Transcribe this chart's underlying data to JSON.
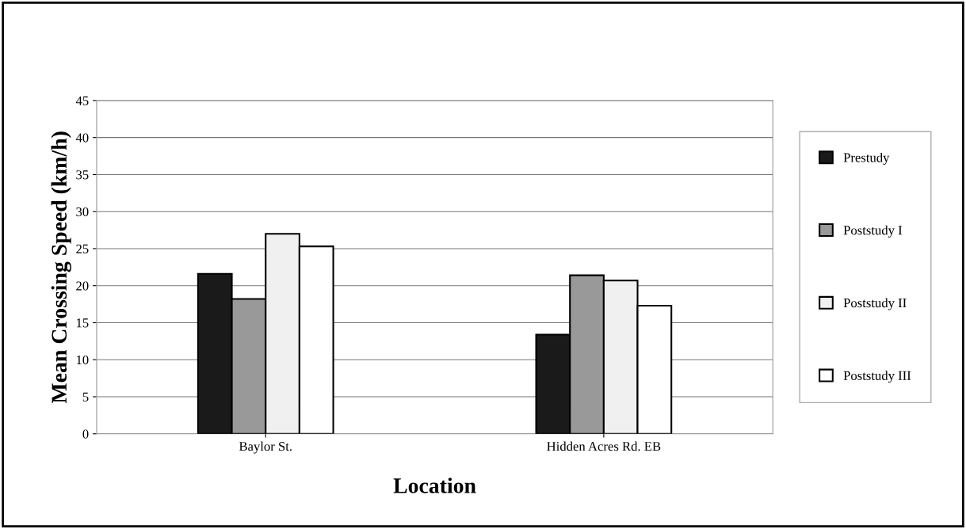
{
  "chart_data": {
    "type": "bar",
    "xlabel": "Location",
    "ylabel": "Mean Crossing Speed (km/h)",
    "categories": [
      "Baylor St.",
      "Hidden Acres Rd. EB"
    ],
    "series": [
      {
        "name": "Prestudy",
        "color": "#1a1a1a",
        "values": [
          21.6,
          13.4
        ]
      },
      {
        "name": "Poststudy I",
        "color": "#999999",
        "values": [
          18.2,
          21.4
        ]
      },
      {
        "name": "Poststudy II",
        "color": "#f0f0f0",
        "values": [
          27.0,
          20.7
        ]
      },
      {
        "name": "Poststudy III",
        "color": "#ffffff",
        "values": [
          25.3,
          17.3
        ]
      }
    ],
    "ylim": [
      0,
      45
    ],
    "yticks": [
      0,
      5,
      10,
      15,
      20,
      25,
      30,
      35,
      40,
      45
    ],
    "grid": "y",
    "legend": "right"
  }
}
